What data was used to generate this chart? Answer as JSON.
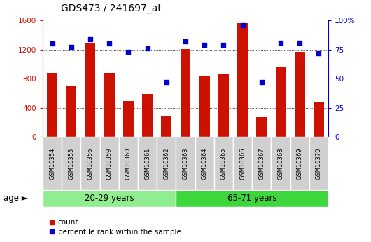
{
  "title": "GDS473 / 241697_at",
  "samples": [
    "GSM10354",
    "GSM10355",
    "GSM10356",
    "GSM10359",
    "GSM10360",
    "GSM10361",
    "GSM10362",
    "GSM10363",
    "GSM10364",
    "GSM10365",
    "GSM10366",
    "GSM10367",
    "GSM10368",
    "GSM10369",
    "GSM10370"
  ],
  "counts": [
    880,
    700,
    1290,
    880,
    490,
    590,
    290,
    1210,
    840,
    860,
    1560,
    270,
    960,
    1170,
    480
  ],
  "percentiles": [
    80,
    77,
    84,
    80,
    73,
    76,
    47,
    82,
    79,
    79,
    96,
    47,
    81,
    81,
    72
  ],
  "group1_n": 7,
  "group1_label": "20-29 years",
  "group1_color": "#90ee90",
  "group2_label": "65-71 years",
  "group2_color": "#3dd63d",
  "left_ylim": [
    0,
    1600
  ],
  "right_ylim": [
    0,
    100
  ],
  "left_yticks": [
    0,
    400,
    800,
    1200,
    1600
  ],
  "right_yticks": [
    0,
    25,
    50,
    75,
    100
  ],
  "right_yticklabels": [
    "0",
    "25",
    "50",
    "75",
    "100%"
  ],
  "bar_color": "#cc1100",
  "dot_color": "#0000cc",
  "axis_color_left": "#cc1100",
  "axis_color_right": "#0000cc",
  "label_bg": "#d0d0d0",
  "age_label": "age",
  "legend_count": "count",
  "legend_percentile": "percentile rank within the sample",
  "bar_width": 0.55,
  "figsize": [
    5.3,
    3.45
  ],
  "dpi": 100
}
